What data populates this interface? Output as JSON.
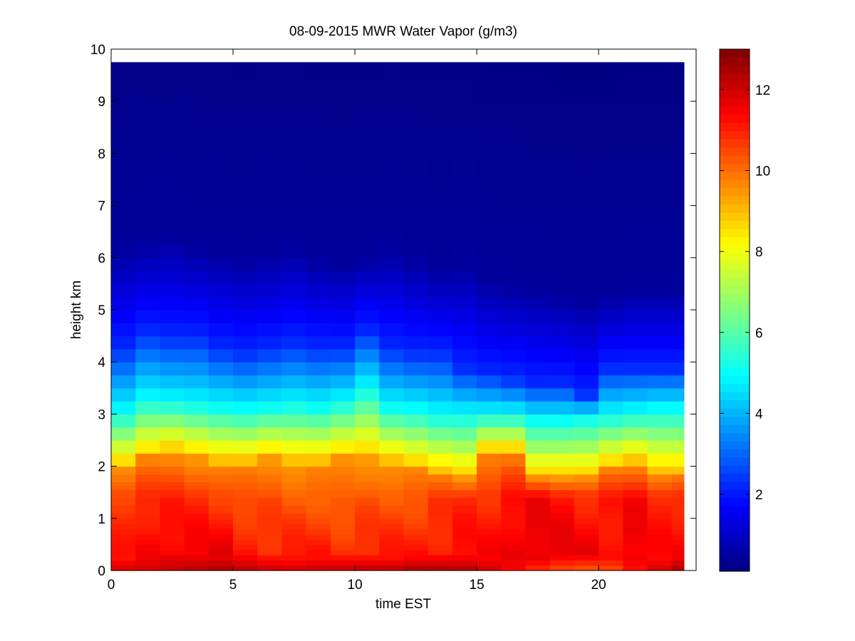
{
  "chart_data": {
    "type": "heatmap",
    "title": "08-09-2015 MWR Water Vapor (g/m3)",
    "xlabel": "time EST",
    "ylabel": "height km",
    "xlim": [
      0,
      24
    ],
    "ylim": [
      0,
      10
    ],
    "x_ticks": [
      0,
      5,
      10,
      15,
      20
    ],
    "y_ticks": [
      0,
      1,
      2,
      3,
      4,
      5,
      6,
      7,
      8,
      9,
      10
    ],
    "x_start": 0.0,
    "x_step": 1.0,
    "x_count": 24,
    "x_end": 23.5,
    "height_levels": [
      0,
      0.1,
      0.2,
      0.3,
      0.4,
      0.5,
      0.6,
      0.7,
      0.8,
      0.9,
      1.0,
      1.1,
      1.25,
      1.4,
      1.55,
      1.7,
      1.85,
      2.0,
      2.25,
      2.5,
      2.75,
      3.0,
      3.25,
      3.5,
      3.75,
      4.0,
      4.25,
      4.5,
      4.75,
      5.0,
      5.25,
      5.5,
      5.75,
      6.0,
      6.25,
      6.5,
      7.0,
      7.5,
      8.0,
      8.5,
      9.0,
      9.5,
      9.75
    ],
    "surface_values": [
      11.9,
      11.9,
      12.1,
      12.3,
      12.5,
      12.3,
      12.1,
      12.0,
      12.1,
      12.2,
      12.3,
      12.3,
      12.5,
      12.5,
      12.4,
      12.0,
      11.4,
      10.8,
      10.4,
      10.2,
      10.4,
      11.2,
      11.9,
      12.5
    ],
    "low_values": [
      11.0,
      11.5,
      11.6,
      11.5,
      11.6,
      11.3,
      11.0,
      11.0,
      11.1,
      11.0,
      11.0,
      11.0,
      11.2,
      11.2,
      11.3,
      11.3,
      11.7,
      11.8,
      11.6,
      11.6,
      11.4,
      11.6,
      11.2,
      11.4
    ],
    "mid_values": [
      10.7,
      11.0,
      10.9,
      10.8,
      10.7,
      10.4,
      10.3,
      10.2,
      10.3,
      10.1,
      10.2,
      10.3,
      10.4,
      10.6,
      10.8,
      10.9,
      11.3,
      11.4,
      11.2,
      11.0,
      11.1,
      11.3,
      11.0,
      11.0
    ],
    "transition_heights": [
      2.0,
      2.2,
      2.3,
      2.2,
      2.1,
      2.1,
      2.2,
      2.1,
      2.1,
      2.2,
      2.2,
      2.1,
      2.0,
      1.9,
      1.8,
      2.3,
      2.3,
      1.8,
      1.8,
      1.8,
      2.0,
      2.1,
      1.9,
      1.9
    ],
    "cyan_heights": [
      3.05,
      3.3,
      3.25,
      3.2,
      3.15,
      3.1,
      3.15,
      3.2,
      3.15,
      3.25,
      3.5,
      3.15,
      3.1,
      3.0,
      3.0,
      3.0,
      3.0,
      2.9,
      2.9,
      2.95,
      3.0,
      3.05,
      3.1,
      3.1
    ],
    "blue_heights": [
      4.3,
      4.6,
      4.5,
      4.5,
      4.3,
      4.2,
      4.3,
      4.4,
      4.3,
      4.3,
      4.6,
      4.3,
      4.2,
      4.2,
      3.9,
      3.8,
      3.7,
      3.6,
      3.6,
      3.4,
      3.9,
      3.9,
      3.9,
      3.9
    ],
    "top_heights": [
      6.2,
      6.3,
      6.4,
      6.2,
      6.1,
      6.0,
      6.1,
      6.2,
      6.0,
      5.9,
      6.0,
      6.2,
      6.0,
      5.8,
      5.9,
      5.6,
      5.5,
      5.4,
      5.3,
      5.2,
      5.3,
      5.4,
      5.4,
      5.4
    ],
    "colorbar": {
      "min": 0.1,
      "max": 13.0,
      "ticks": [
        2,
        4,
        6,
        8,
        10,
        12
      ],
      "colormap": "jet"
    },
    "grid": false
  }
}
